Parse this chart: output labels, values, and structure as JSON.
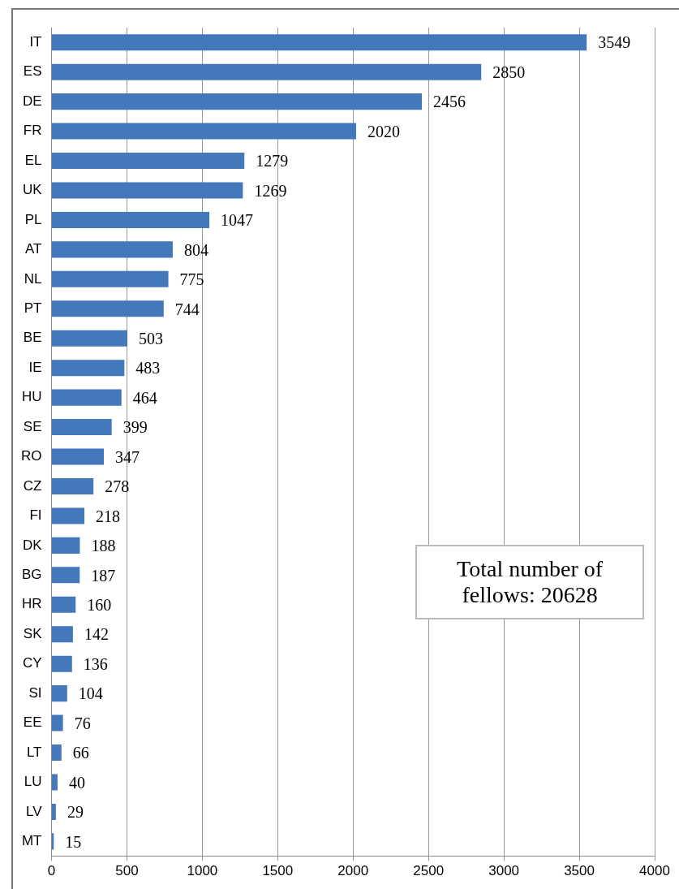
{
  "chart_data": {
    "type": "bar",
    "orientation": "horizontal",
    "categories": [
      "IT",
      "ES",
      "DE",
      "FR",
      "EL",
      "UK",
      "PL",
      "AT",
      "NL",
      "PT",
      "BE",
      "IE",
      "HU",
      "SE",
      "RO",
      "CZ",
      "FI",
      "DK",
      "BG",
      "HR",
      "SK",
      "CY",
      "SI",
      "EE",
      "LT",
      "LU",
      "LV",
      "MT"
    ],
    "values": [
      3549,
      2850,
      2456,
      2020,
      1279,
      1269,
      1047,
      804,
      775,
      744,
      503,
      483,
      464,
      399,
      347,
      278,
      218,
      188,
      187,
      160,
      142,
      136,
      104,
      76,
      66,
      40,
      29,
      15
    ],
    "color": "#4379bb",
    "xlim": [
      0,
      4000
    ],
    "xticks": [
      0,
      500,
      1000,
      1500,
      2000,
      2500,
      3000,
      3500,
      4000
    ],
    "grid": "x",
    "data_labels": true,
    "annotations": [
      "Total number of fellows: 20628"
    ]
  }
}
